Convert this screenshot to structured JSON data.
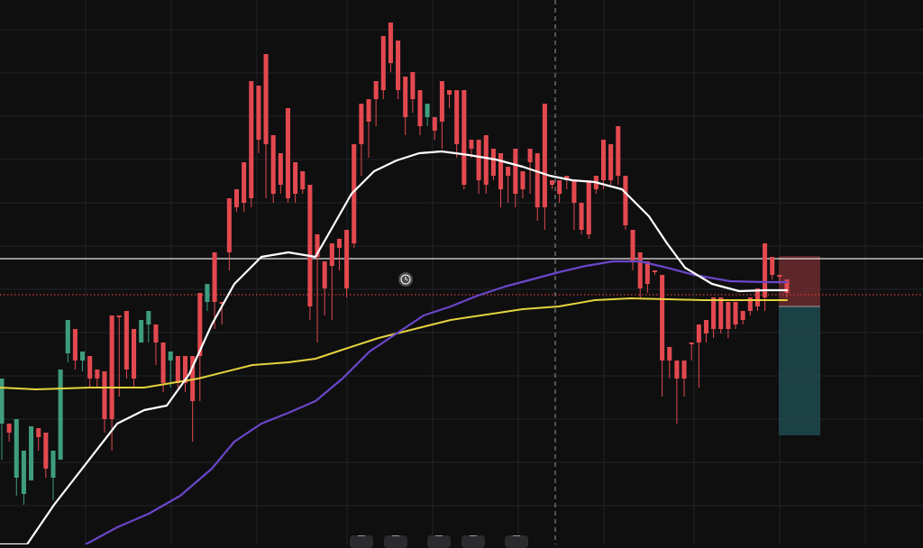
{
  "chart_data": {
    "type": "candlestick",
    "grid": true,
    "ylim": [
      0,
      604
    ],
    "colors": {
      "background": "#0f0f10",
      "grid": "#222326",
      "up": "#3f9d7e",
      "down": "#e2494f",
      "ma_fast": "#ffffff",
      "ma_mid": "#6a46c8",
      "ma_slow": "#e6d33f",
      "price_line": "#e8e8e8",
      "price_line_dotted": "#d23b3b",
      "stop_zone": "#6b2a2e",
      "target_zone": "#1f4a4e"
    },
    "candles": [
      [
        450,
        470,
        420,
        510
      ],
      [
        470,
        470,
        480,
        490
      ],
      [
        475,
        530,
        465,
        550
      ],
      [
        528,
        548,
        500,
        560
      ],
      [
        533,
        533,
        473,
        513
      ],
      [
        475,
        475,
        485,
        500
      ],
      [
        480,
        480,
        520,
        530
      ],
      [
        530,
        530,
        500,
        555
      ],
      [
        510,
        510,
        410,
        490
      ],
      [
        392,
        392,
        355,
        402
      ],
      [
        365,
        365,
        400,
        410
      ],
      [
        400,
        400,
        390,
        412
      ],
      [
        395,
        395,
        420,
        430
      ],
      [
        410,
        410,
        420,
        430
      ],
      [
        412,
        412,
        465,
        480
      ],
      [
        350,
        350,
        465,
        500
      ],
      [
        350,
        350,
        350,
        440
      ],
      [
        345,
        345,
        410,
        420
      ],
      [
        365,
        365,
        420,
        430
      ],
      [
        380,
        380,
        355,
        380
      ],
      [
        360,
        360,
        345,
        380
      ],
      [
        360,
        360,
        380,
        405
      ],
      [
        380,
        380,
        425,
        435
      ],
      [
        400,
        400,
        390,
        430
      ],
      [
        395,
        395,
        425,
        430
      ],
      [
        395,
        395,
        425,
        435
      ],
      [
        395,
        395,
        445,
        490
      ],
      [
        325,
        325,
        395,
        445
      ],
      [
        335,
        335,
        315,
        345
      ],
      [
        280,
        280,
        335,
        365
      ],
      [
        335,
        335,
        335,
        360
      ],
      [
        220,
        220,
        280,
        300
      ],
      [
        210,
        210,
        230,
        235
      ],
      [
        180,
        180,
        225,
        235
      ],
      [
        90,
        90,
        220,
        230
      ],
      [
        95,
        95,
        155,
        170
      ],
      [
        60,
        60,
        160,
        220
      ],
      [
        150,
        150,
        215,
        225
      ],
      [
        170,
        170,
        205,
        215
      ],
      [
        120,
        120,
        220,
        225
      ],
      [
        180,
        180,
        215,
        225
      ],
      [
        190,
        190,
        210,
        215
      ],
      [
        205,
        205,
        340,
        355
      ],
      [
        260,
        260,
        285,
        380
      ],
      [
        290,
        290,
        320,
        350
      ],
      [
        270,
        270,
        295,
        355
      ],
      [
        265,
        265,
        275,
        300
      ],
      [
        255,
        255,
        320,
        330
      ],
      [
        160,
        160,
        270,
        275
      ],
      [
        115,
        115,
        160,
        195
      ],
      [
        110,
        110,
        135,
        175
      ],
      [
        90,
        90,
        110,
        140
      ],
      [
        40,
        40,
        100,
        110
      ],
      [
        25,
        25,
        70,
        80
      ],
      [
        45,
        45,
        100,
        110
      ],
      [
        85,
        85,
        130,
        150
      ],
      [
        80,
        80,
        110,
        125
      ],
      [
        100,
        100,
        140,
        150
      ],
      [
        130,
        130,
        115,
        140
      ],
      [
        130,
        130,
        145,
        155
      ],
      [
        90,
        90,
        135,
        165
      ],
      [
        100,
        100,
        105,
        120
      ],
      [
        100,
        100,
        160,
        175
      ],
      [
        100,
        100,
        205,
        210
      ],
      [
        155,
        155,
        165,
        175
      ],
      [
        155,
        155,
        200,
        215
      ],
      [
        150,
        150,
        205,
        215
      ],
      [
        165,
        165,
        195,
        200
      ],
      [
        170,
        170,
        210,
        230
      ],
      [
        185,
        185,
        195,
        225
      ],
      [
        165,
        165,
        215,
        230
      ],
      [
        190,
        190,
        210,
        220
      ],
      [
        165,
        165,
        180,
        215
      ],
      [
        170,
        170,
        230,
        245
      ],
      [
        115,
        115,
        230,
        255
      ],
      [
        200,
        200,
        205,
        210
      ],
      [
        200,
        200,
        215,
        225
      ],
      [
        195,
        195,
        200,
        210
      ],
      [
        200,
        200,
        225,
        255
      ],
      [
        225,
        225,
        255,
        260
      ],
      [
        200,
        200,
        260,
        265
      ],
      [
        195,
        195,
        210,
        215
      ],
      [
        155,
        155,
        200,
        210
      ],
      [
        160,
        160,
        200,
        205
      ],
      [
        140,
        140,
        195,
        205
      ],
      [
        195,
        195,
        250,
        255
      ],
      [
        255,
        255,
        290,
        300
      ],
      [
        280,
        280,
        320,
        330
      ],
      [
        290,
        290,
        315,
        325
      ],
      [
        300,
        300,
        300,
        305
      ],
      [
        305,
        305,
        400,
        440
      ],
      [
        385,
        385,
        400,
        420
      ],
      [
        400,
        400,
        420,
        470
      ],
      [
        400,
        400,
        420,
        440
      ],
      [
        380,
        380,
        380,
        400
      ],
      [
        360,
        360,
        380,
        430
      ],
      [
        355,
        355,
        370,
        380
      ],
      [
        330,
        330,
        365,
        375
      ],
      [
        330,
        330,
        365,
        370
      ],
      [
        335,
        335,
        365,
        375
      ],
      [
        335,
        335,
        360,
        365
      ],
      [
        345,
        345,
        355,
        360
      ],
      [
        330,
        330,
        345,
        350
      ],
      [
        320,
        320,
        340,
        345
      ],
      [
        270,
        270,
        330,
        345
      ],
      [
        285,
        285,
        305,
        310
      ],
      [
        305,
        305,
        305,
        315
      ],
      [
        310,
        310,
        325,
        330
      ]
    ],
    "ma_fast": [
      [
        0,
        604
      ],
      [
        30,
        604
      ],
      [
        60,
        560
      ],
      [
        95,
        515
      ],
      [
        130,
        470
      ],
      [
        160,
        455
      ],
      [
        185,
        450
      ],
      [
        210,
        415
      ],
      [
        235,
        360
      ],
      [
        260,
        315
      ],
      [
        290,
        285
      ],
      [
        320,
        280
      ],
      [
        350,
        285
      ],
      [
        370,
        250
      ],
      [
        390,
        215
      ],
      [
        415,
        190
      ],
      [
        440,
        178
      ],
      [
        465,
        170
      ],
      [
        490,
        168
      ],
      [
        520,
        172
      ],
      [
        550,
        177
      ],
      [
        580,
        185
      ],
      [
        610,
        195
      ],
      [
        635,
        200
      ],
      [
        660,
        202
      ],
      [
        690,
        210
      ],
      [
        720,
        240
      ],
      [
        740,
        270
      ],
      [
        760,
        297
      ],
      [
        790,
        315
      ],
      [
        820,
        323
      ],
      [
        850,
        322
      ],
      [
        873,
        322
      ]
    ],
    "ma_mid": [
      [
        95,
        604
      ],
      [
        130,
        585
      ],
      [
        165,
        570
      ],
      [
        200,
        550
      ],
      [
        235,
        520
      ],
      [
        260,
        490
      ],
      [
        290,
        470
      ],
      [
        320,
        458
      ],
      [
        350,
        445
      ],
      [
        380,
        420
      ],
      [
        410,
        390
      ],
      [
        440,
        370
      ],
      [
        470,
        350
      ],
      [
        500,
        340
      ],
      [
        530,
        328
      ],
      [
        560,
        318
      ],
      [
        590,
        310
      ],
      [
        620,
        302
      ],
      [
        650,
        295
      ],
      [
        680,
        290
      ],
      [
        710,
        290
      ],
      [
        740,
        297
      ],
      [
        770,
        305
      ],
      [
        810,
        312
      ],
      [
        850,
        313
      ],
      [
        873,
        313
      ]
    ],
    "ma_slow": [
      [
        0,
        430
      ],
      [
        40,
        432
      ],
      [
        100,
        430
      ],
      [
        160,
        430
      ],
      [
        220,
        420
      ],
      [
        280,
        405
      ],
      [
        320,
        402
      ],
      [
        350,
        398
      ],
      [
        380,
        388
      ],
      [
        420,
        375
      ],
      [
        460,
        365
      ],
      [
        500,
        355
      ],
      [
        540,
        349
      ],
      [
        580,
        343
      ],
      [
        620,
        340
      ],
      [
        660,
        333
      ],
      [
        700,
        331
      ],
      [
        740,
        332
      ],
      [
        780,
        333
      ],
      [
        820,
        333
      ],
      [
        873,
        333
      ]
    ],
    "horizontal_lines": [
      {
        "style": "solid",
        "value": 287
      },
      {
        "style": "dotted",
        "value": 327
      }
    ],
    "vertical_crosshair_x": 616,
    "position": {
      "entry": 340,
      "stop": 284,
      "target": 483,
      "x_start": 864,
      "x_end": 910
    },
    "alert_marker": {
      "x": 450,
      "y": 310
    }
  }
}
